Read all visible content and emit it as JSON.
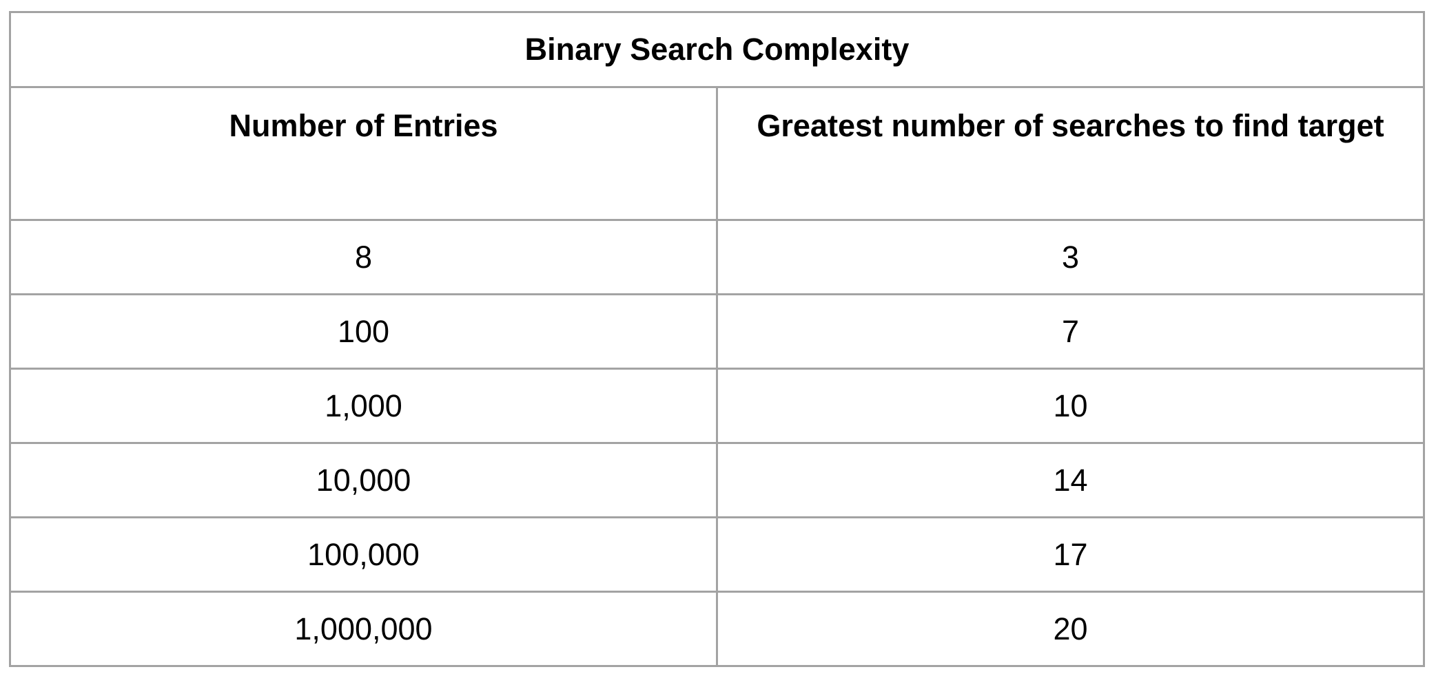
{
  "table": {
    "title": "Binary Search Complexity",
    "columns": [
      "Number of Entries",
      "Greatest number of searches to find target"
    ],
    "rows": [
      [
        "8",
        "3"
      ],
      [
        "100",
        "7"
      ],
      [
        "1,000",
        "10"
      ],
      [
        "10,000",
        "14"
      ],
      [
        "100,000",
        "17"
      ],
      [
        "1,000,000",
        "20"
      ]
    ]
  },
  "colors": {
    "border": "#a3a3a3",
    "text": "#000000",
    "background": "#ffffff"
  }
}
